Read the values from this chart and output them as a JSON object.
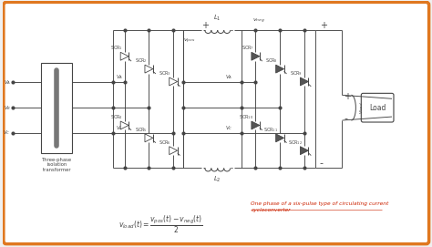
{
  "bg_color": "#f0f0f0",
  "border_color": "#e07820",
  "line_color": "#444444",
  "red_color": "#cc2200",
  "transformer_label": "Three-phase\nisolation\ntransformer",
  "load_label": "Load",
  "scr_top_left": [
    "SCR$_1$",
    "SCR$_2$",
    "SCR$_3$"
  ],
  "scr_bot_left": [
    "SCR$_4$",
    "SCR$_5$",
    "SCR$_6$"
  ],
  "scr_top_right": [
    "SCR$_7$",
    "SCR$_8$",
    "SCR$_9$"
  ],
  "scr_bot_right": [
    "SCR$_{10}$",
    "SCR$_{11}$",
    "SCR$_{12}$"
  ],
  "annotation": "One phase of a six-pulse type of circulating current\ncycloconverter"
}
